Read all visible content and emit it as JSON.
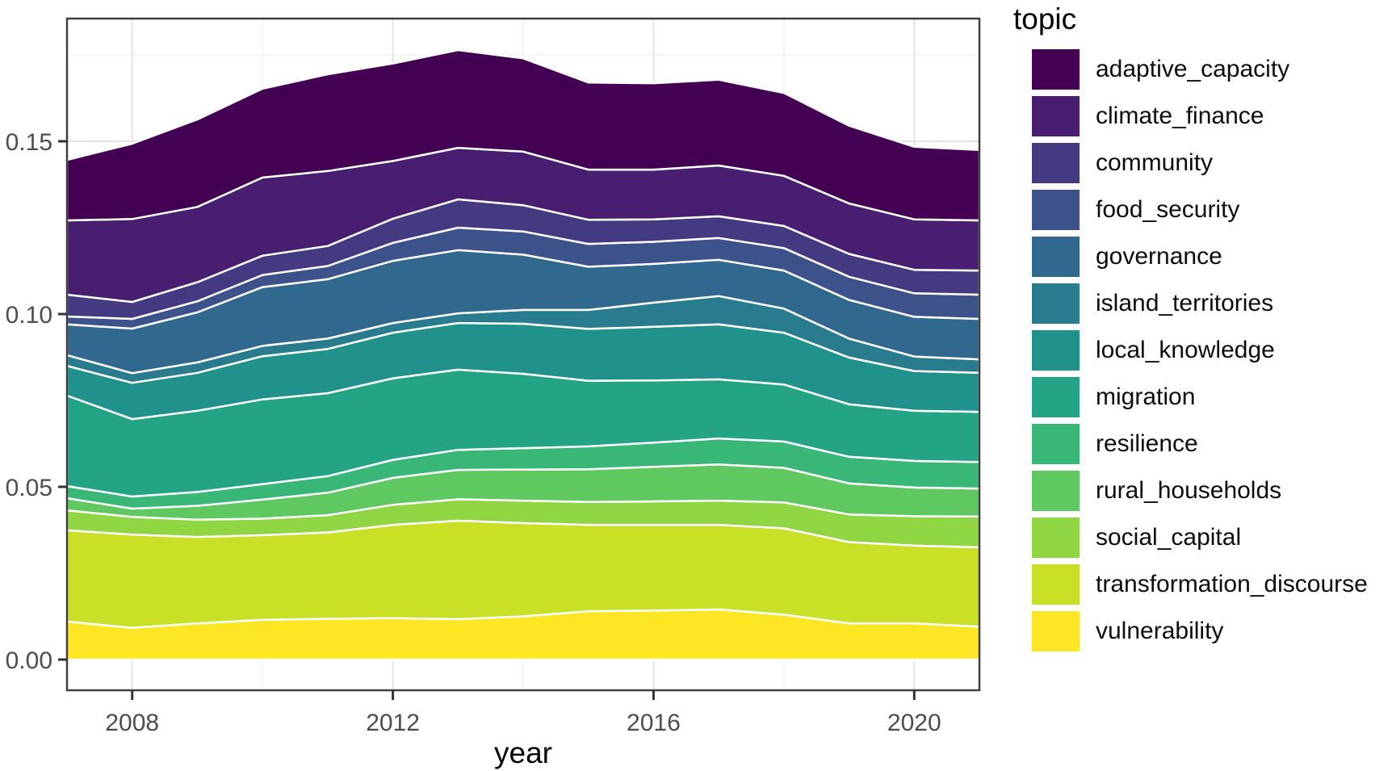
{
  "chart_data": {
    "type": "area",
    "stacked": true,
    "title": "",
    "xlabel": "year",
    "ylabel": "",
    "legend_title": "topic",
    "legend_position": "right",
    "grid": true,
    "x": [
      2007,
      2008,
      2009,
      2010,
      2011,
      2012,
      2013,
      2014,
      2015,
      2016,
      2017,
      2018,
      2019,
      2020,
      2021
    ],
    "xticks": [
      2008,
      2012,
      2016,
      2020
    ],
    "xtick_labels": [
      "2008",
      "2012",
      "2016",
      "2020"
    ],
    "x_minor": [
      2010,
      2014,
      2018
    ],
    "xlim": [
      2007,
      2021
    ],
    "yticks": [
      0.0,
      0.05,
      0.1,
      0.15
    ],
    "ytick_labels": [
      "0.00",
      "0.05",
      "0.10",
      "0.15"
    ],
    "y_minor": [
      0.025,
      0.075,
      0.125,
      0.175
    ],
    "ylim": [
      0,
      0.185
    ],
    "stack_order": "bottom_to_top_is_reverse_of_legend",
    "series": [
      {
        "name": "adaptive_capacity",
        "color": "#440154",
        "values": [
          0.0175,
          0.0218,
          0.0253,
          0.0257,
          0.028,
          0.0282,
          0.0283,
          0.027,
          0.0252,
          0.025,
          0.0248,
          0.024,
          0.0225,
          0.021,
          0.0204
        ]
      },
      {
        "name": "climate_finance",
        "color": "#481E70",
        "values": [
          0.0215,
          0.024,
          0.0218,
          0.0226,
          0.0217,
          0.0167,
          0.0149,
          0.0155,
          0.0145,
          0.0144,
          0.0147,
          0.0145,
          0.0146,
          0.0146,
          0.0145
        ]
      },
      {
        "name": "community",
        "color": "#443A82",
        "values": [
          0.0063,
          0.0049,
          0.0055,
          0.0056,
          0.0058,
          0.007,
          0.0082,
          0.0076,
          0.007,
          0.0065,
          0.0063,
          0.0064,
          0.0066,
          0.0068,
          0.007
        ]
      },
      {
        "name": "food_security",
        "color": "#3B528B",
        "values": [
          0.0023,
          0.0028,
          0.0032,
          0.0035,
          0.0038,
          0.0052,
          0.0065,
          0.0067,
          0.0066,
          0.0064,
          0.0063,
          0.0065,
          0.0067,
          0.0068,
          0.007
        ]
      },
      {
        "name": "governance",
        "color": "#31688E",
        "values": [
          0.0089,
          0.0129,
          0.0145,
          0.017,
          0.0172,
          0.018,
          0.0183,
          0.016,
          0.0125,
          0.0112,
          0.0105,
          0.011,
          0.0112,
          0.0115,
          0.0117
        ]
      },
      {
        "name": "island_territories",
        "color": "#287C8E",
        "values": [
          0.0031,
          0.0028,
          0.003,
          0.003,
          0.003,
          0.0028,
          0.0028,
          0.004,
          0.0055,
          0.007,
          0.0082,
          0.007,
          0.0055,
          0.0042,
          0.0039
        ]
      },
      {
        "name": "local_knowledge",
        "color": "#21918C",
        "values": [
          0.0086,
          0.0105,
          0.011,
          0.0125,
          0.0128,
          0.0132,
          0.0135,
          0.0145,
          0.015,
          0.0155,
          0.0159,
          0.015,
          0.0135,
          0.0115,
          0.0113
        ]
      },
      {
        "name": "migration",
        "color": "#22A485",
        "values": [
          0.0262,
          0.0224,
          0.0235,
          0.0245,
          0.024,
          0.0236,
          0.0232,
          0.0215,
          0.019,
          0.018,
          0.0171,
          0.0165,
          0.0152,
          0.0145,
          0.0145
        ]
      },
      {
        "name": "resilience",
        "color": "#39B777",
        "values": [
          0.0035,
          0.0035,
          0.004,
          0.0045,
          0.0048,
          0.0052,
          0.0058,
          0.0062,
          0.0066,
          0.007,
          0.0075,
          0.0076,
          0.0077,
          0.0077,
          0.0077
        ]
      },
      {
        "name": "rural_households",
        "color": "#5FC861",
        "values": [
          0.0035,
          0.0024,
          0.004,
          0.0055,
          0.0065,
          0.0078,
          0.0085,
          0.009,
          0.0095,
          0.01,
          0.0105,
          0.01,
          0.009,
          0.0083,
          0.0081
        ]
      },
      {
        "name": "social_capital",
        "color": "#90D643",
        "values": [
          0.0058,
          0.0051,
          0.005,
          0.0048,
          0.005,
          0.0058,
          0.0062,
          0.0065,
          0.0066,
          0.0068,
          0.007,
          0.0075,
          0.008,
          0.0085,
          0.0089
        ]
      },
      {
        "name": "transformation_discourse",
        "color": "#C8E026",
        "values": [
          0.0264,
          0.027,
          0.025,
          0.0245,
          0.025,
          0.027,
          0.0285,
          0.027,
          0.025,
          0.0248,
          0.0245,
          0.025,
          0.0235,
          0.0225,
          0.023
        ]
      },
      {
        "name": "vulnerability",
        "color": "#FDE725",
        "values": [
          0.011,
          0.0092,
          0.0105,
          0.0115,
          0.0118,
          0.012,
          0.0117,
          0.0125,
          0.014,
          0.0142,
          0.0145,
          0.013,
          0.0105,
          0.0105,
          0.0095
        ]
      }
    ],
    "totals_by_year": [
      0.1446,
      0.1493,
      0.1563,
      0.1652,
      0.1694,
      0.1725,
      0.1764,
      0.174,
      0.167,
      0.1668,
      0.1678,
      0.164,
      0.1545,
      0.1484,
      0.1475
    ],
    "style": {
      "panel_border_color": "#404040",
      "major_grid_color": "#E4E4E4",
      "minor_grid_color": "#F2F2F2",
      "area_outline_color": "#FFFFFF",
      "axis_text_color": "#4D4D4D",
      "axis_title_color": "#000000",
      "background": "#FFFFFF"
    }
  }
}
